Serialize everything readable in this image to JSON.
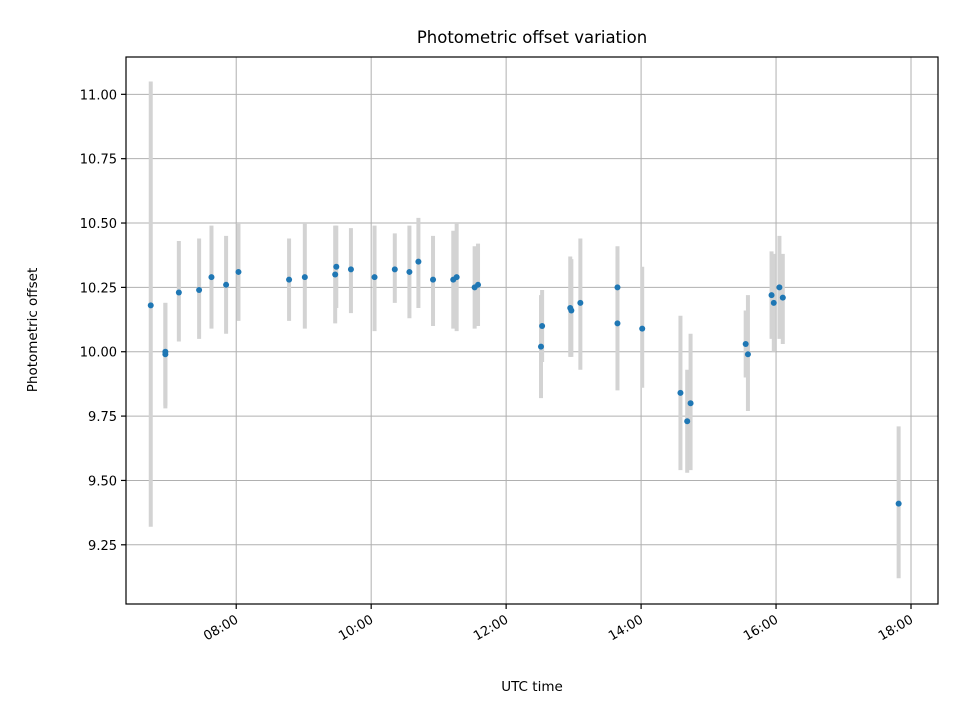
{
  "chart_data": {
    "type": "scatter",
    "title": "Photometric offset variation",
    "xlabel": "UTC time",
    "ylabel": "Photometric offset",
    "xlim": [
      "06:22",
      "18:24"
    ],
    "ylim": [
      9.02,
      11.145
    ],
    "grid": true,
    "x_ticks": [
      "08:00",
      "10:00",
      "12:00",
      "14:00",
      "16:00",
      "18:00"
    ],
    "y_ticks": [
      9.25,
      9.5,
      9.75,
      10.0,
      10.25,
      10.5,
      10.75,
      11.0
    ],
    "y_tick_labels": [
      "9.25",
      "9.50",
      "9.75",
      "10.00",
      "10.25",
      "10.50",
      "10.75",
      "11.00"
    ],
    "colors": {
      "points": "#1f77b4",
      "errorbars": "#d3d3d3",
      "grid": "#b0b0b0"
    },
    "series": [
      {
        "points": [
          {
            "x": "06:44",
            "y": 10.18,
            "lo": 9.32,
            "hi": 11.05
          },
          {
            "x": "06:57",
            "y": 9.99,
            "lo": 9.78,
            "hi": 10.19
          },
          {
            "x": "06:57",
            "y": 10.0,
            "lo": 9.79,
            "hi": 10.19
          },
          {
            "x": "07:09",
            "y": 10.23,
            "lo": 10.04,
            "hi": 10.43
          },
          {
            "x": "07:27",
            "y": 10.24,
            "lo": 10.05,
            "hi": 10.44
          },
          {
            "x": "07:38",
            "y": 10.29,
            "lo": 10.09,
            "hi": 10.49
          },
          {
            "x": "07:51",
            "y": 10.26,
            "lo": 10.07,
            "hi": 10.45
          },
          {
            "x": "08:02",
            "y": 10.31,
            "lo": 10.12,
            "hi": 10.5
          },
          {
            "x": "08:47",
            "y": 10.28,
            "lo": 10.12,
            "hi": 10.44
          },
          {
            "x": "09:01",
            "y": 10.29,
            "lo": 10.09,
            "hi": 10.5
          },
          {
            "x": "09:28",
            "y": 10.3,
            "lo": 10.11,
            "hi": 10.49
          },
          {
            "x": "09:29",
            "y": 10.33,
            "lo": 10.17,
            "hi": 10.49
          },
          {
            "x": "09:42",
            "y": 10.32,
            "lo": 10.15,
            "hi": 10.48
          },
          {
            "x": "10:03",
            "y": 10.29,
            "lo": 10.08,
            "hi": 10.49
          },
          {
            "x": "10:21",
            "y": 10.32,
            "lo": 10.19,
            "hi": 10.46
          },
          {
            "x": "10:34",
            "y": 10.31,
            "lo": 10.13,
            "hi": 10.49
          },
          {
            "x": "10:42",
            "y": 10.35,
            "lo": 10.17,
            "hi": 10.52
          },
          {
            "x": "10:55",
            "y": 10.28,
            "lo": 10.1,
            "hi": 10.45
          },
          {
            "x": "11:13",
            "y": 10.28,
            "lo": 10.09,
            "hi": 10.47
          },
          {
            "x": "11:16",
            "y": 10.29,
            "lo": 10.08,
            "hi": 10.5
          },
          {
            "x": "11:32",
            "y": 10.25,
            "lo": 10.09,
            "hi": 10.41
          },
          {
            "x": "11:35",
            "y": 10.26,
            "lo": 10.1,
            "hi": 10.42
          },
          {
            "x": "12:31",
            "y": 10.02,
            "lo": 9.82,
            "hi": 10.22
          },
          {
            "x": "12:32",
            "y": 10.1,
            "lo": 9.96,
            "hi": 10.24
          },
          {
            "x": "12:57",
            "y": 10.17,
            "lo": 9.98,
            "hi": 10.37
          },
          {
            "x": "12:58",
            "y": 10.16,
            "lo": 9.98,
            "hi": 10.36
          },
          {
            "x": "13:06",
            "y": 10.19,
            "lo": 9.93,
            "hi": 10.44
          },
          {
            "x": "13:39",
            "y": 10.25,
            "lo": 10.09,
            "hi": 10.41
          },
          {
            "x": "13:39",
            "y": 10.11,
            "lo": 9.85,
            "hi": 10.37
          },
          {
            "x": "14:01",
            "y": 10.09,
            "lo": 9.86,
            "hi": 10.33
          },
          {
            "x": "14:35",
            "y": 9.84,
            "lo": 9.54,
            "hi": 10.14
          },
          {
            "x": "14:41",
            "y": 9.73,
            "lo": 9.53,
            "hi": 9.93
          },
          {
            "x": "14:44",
            "y": 9.8,
            "lo": 9.54,
            "hi": 10.07
          },
          {
            "x": "15:33",
            "y": 10.03,
            "lo": 9.9,
            "hi": 10.16
          },
          {
            "x": "15:35",
            "y": 9.99,
            "lo": 9.77,
            "hi": 10.22
          },
          {
            "x": "15:56",
            "y": 10.22,
            "lo": 10.05,
            "hi": 10.39
          },
          {
            "x": "15:58",
            "y": 10.19,
            "lo": 10.0,
            "hi": 10.38
          },
          {
            "x": "16:03",
            "y": 10.25,
            "lo": 10.05,
            "hi": 10.45
          },
          {
            "x": "16:06",
            "y": 10.21,
            "lo": 10.03,
            "hi": 10.38
          },
          {
            "x": "17:49",
            "y": 9.41,
            "lo": 9.12,
            "hi": 9.71
          }
        ]
      }
    ]
  }
}
